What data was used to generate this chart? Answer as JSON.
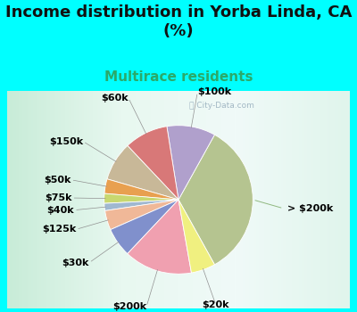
{
  "title": "Income distribution in Yorba Linda, CA\n(%)",
  "subtitle": "Multirace residents",
  "background_color": "#00FFFF",
  "watermark": "City-Data.com",
  "slices": [
    {
      "label": "> $200k",
      "value": 32,
      "color": "#b5c490"
    },
    {
      "label": "$100k",
      "value": 10,
      "color": "#b0a0cc"
    },
    {
      "label": "$60k",
      "value": 9,
      "color": "#d87878"
    },
    {
      "label": "$150k",
      "value": 8,
      "color": "#c8b898"
    },
    {
      "label": "$50k",
      "value": 3,
      "color": "#e8a050"
    },
    {
      "label": "$75k",
      "value": 2,
      "color": "#c8d870"
    },
    {
      "label": "$40k",
      "value": 1.5,
      "color": "#a0b8d0"
    },
    {
      "label": "$125k",
      "value": 4,
      "color": "#f0b898"
    },
    {
      "label": "$30k",
      "value": 6,
      "color": "#8090cc"
    },
    {
      "label": "$200k",
      "value": 14,
      "color": "#f0a0b0"
    },
    {
      "label": "$20k",
      "value": 5,
      "color": "#f0f080"
    }
  ],
  "title_fontsize": 13,
  "subtitle_fontsize": 11,
  "subtitle_color": "#2aaa6a",
  "label_fontsize": 8
}
